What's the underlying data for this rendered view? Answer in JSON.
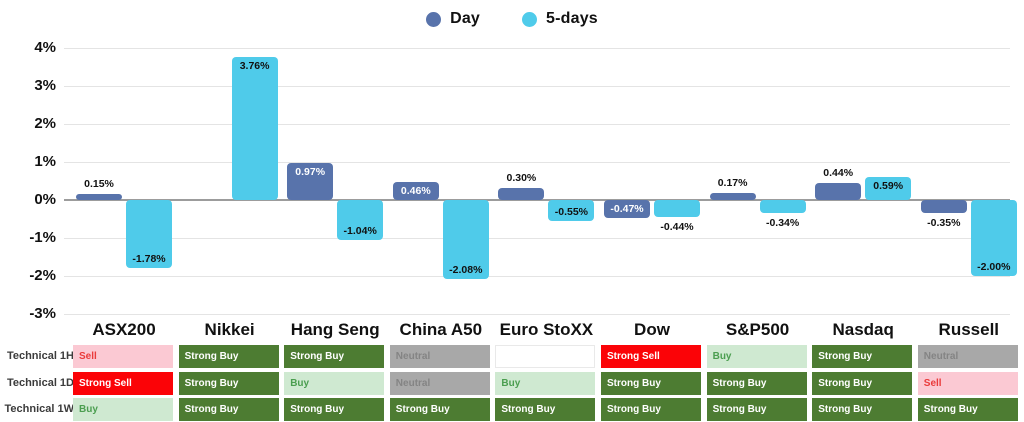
{
  "legend": {
    "items": [
      {
        "label": "Day",
        "color": "#5873ab"
      },
      {
        "label": "5-days",
        "color": "#4fcbea"
      }
    ]
  },
  "chart_data": {
    "type": "bar",
    "title": "",
    "categories": [
      "ASX200",
      "Nikkei",
      "Hang Seng",
      "China A50",
      "Euro StoXX",
      "Dow",
      "S&P500",
      "Nasdaq",
      "Russell"
    ],
    "series": [
      {
        "name": "Day",
        "color": "#5873ab",
        "inside_label_color": "#ffffff",
        "values": [
          0.15,
          null,
          0.97,
          0.46,
          0.3,
          -0.47,
          0.17,
          0.44,
          -0.35
        ],
        "labels": [
          "0.15%",
          null,
          "0.97%",
          "0.46%",
          "0.30%",
          "-0.47%",
          "0.17%",
          "0.44%",
          "-0.35%"
        ],
        "label_placement": [
          "above",
          null,
          "inside",
          "inside",
          "above",
          "inside",
          "above",
          "above",
          "below"
        ]
      },
      {
        "name": "5-days",
        "color": "#4fcbea",
        "inside_label_color": "#111111",
        "values": [
          -1.78,
          3.76,
          -1.04,
          -2.08,
          -0.55,
          -0.44,
          -0.34,
          0.59,
          -2.0
        ],
        "labels": [
          "-1.78%",
          "3.76%",
          "-1.04%",
          "-2.08%",
          "-0.55%",
          "-0.44%",
          "-0.34%",
          "0.59%",
          "-2.00%"
        ],
        "label_placement": [
          "inside",
          "inside",
          "inside",
          "inside",
          "inside",
          "below",
          "below",
          "inside",
          "inside"
        ]
      }
    ],
    "ylim": [
      -3,
      4
    ],
    "ytick_labels": [
      "4%",
      "3%",
      "2%",
      "1%",
      "0%",
      "-1%",
      "-2%",
      "-3%"
    ],
    "grid": true,
    "legend_position": "top-center"
  },
  "table": {
    "row_labels": [
      "Technical 1H",
      "Technical 1D",
      "Technical 1W"
    ],
    "cells": [
      [
        {
          "text": "Sell",
          "rating": "sell"
        },
        {
          "text": "Strong Buy",
          "rating": "strong_buy"
        },
        {
          "text": "Strong Buy",
          "rating": "strong_buy"
        },
        {
          "text": "Neutral",
          "rating": "neutral"
        },
        {
          "text": "",
          "rating": "blank"
        },
        {
          "text": "Strong Sell",
          "rating": "strong_sell"
        },
        {
          "text": "Buy",
          "rating": "buy"
        },
        {
          "text": "Strong Buy",
          "rating": "strong_buy"
        },
        {
          "text": "Neutral",
          "rating": "neutral"
        }
      ],
      [
        {
          "text": "Strong Sell",
          "rating": "strong_sell"
        },
        {
          "text": "Strong Buy",
          "rating": "strong_buy"
        },
        {
          "text": "Buy",
          "rating": "buy"
        },
        {
          "text": "Neutral",
          "rating": "neutral"
        },
        {
          "text": "Buy",
          "rating": "buy"
        },
        {
          "text": "Strong Buy",
          "rating": "strong_buy"
        },
        {
          "text": "Strong Buy",
          "rating": "strong_buy"
        },
        {
          "text": "Strong Buy",
          "rating": "strong_buy"
        },
        {
          "text": "Sell",
          "rating": "sell"
        }
      ],
      [
        {
          "text": "Buy",
          "rating": "buy"
        },
        {
          "text": "Strong Buy",
          "rating": "strong_buy"
        },
        {
          "text": "Strong Buy",
          "rating": "strong_buy"
        },
        {
          "text": "Strong Buy",
          "rating": "strong_buy"
        },
        {
          "text": "Strong Buy",
          "rating": "strong_buy"
        },
        {
          "text": "Strong Buy",
          "rating": "strong_buy"
        },
        {
          "text": "Strong Buy",
          "rating": "strong_buy"
        },
        {
          "text": "Strong Buy",
          "rating": "strong_buy"
        },
        {
          "text": "Strong Buy",
          "rating": "strong_buy"
        }
      ]
    ]
  },
  "rating_colors": {
    "strong_buy": {
      "bg": "#4d7c32",
      "fg": "#ffffff"
    },
    "buy": {
      "bg": "#cfe9d1",
      "fg": "#4b9e50"
    },
    "neutral": {
      "bg": "#a8a8a8",
      "fg": "#848484"
    },
    "sell": {
      "bg": "#fbc9d3",
      "fg": "#ea3b3b"
    },
    "strong_sell": {
      "bg": "#fb0307",
      "fg": "#ffffff"
    },
    "blank": {
      "bg": "#ffffff",
      "fg": "#000000"
    }
  }
}
